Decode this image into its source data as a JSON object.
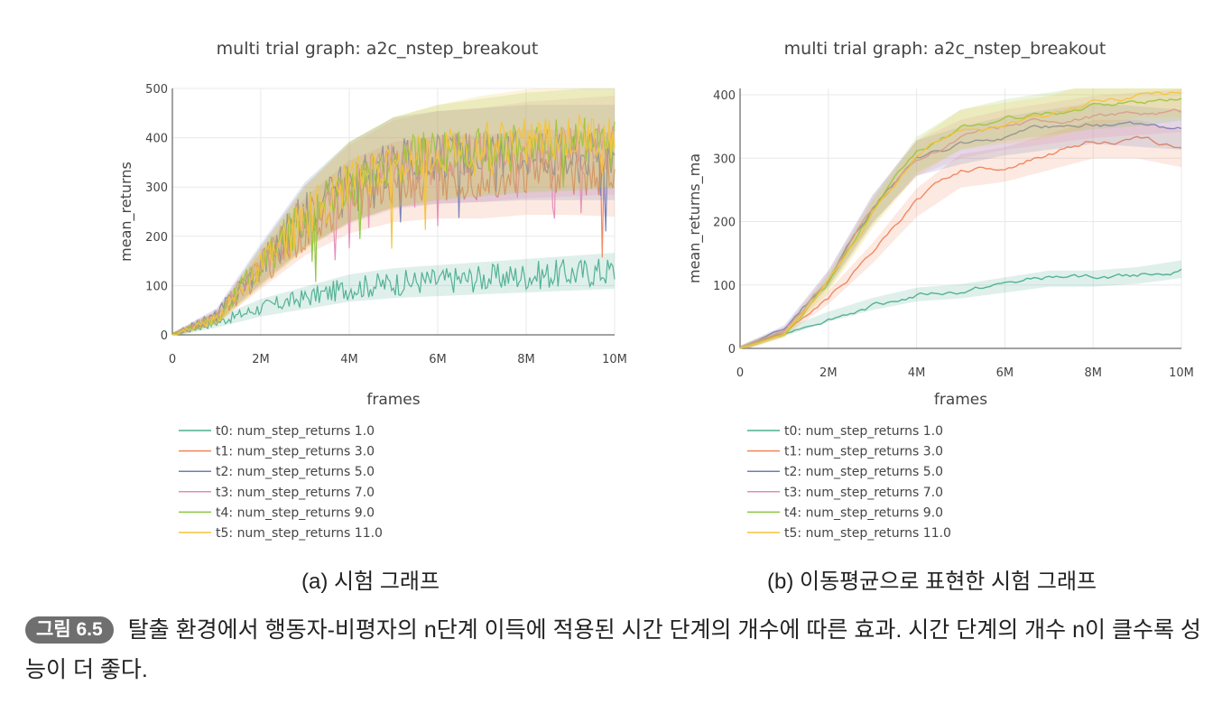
{
  "chart_data": [
    {
      "type": "line",
      "panel": "a",
      "title": "multi trial graph: a2c_nstep_breakout",
      "xlabel": "frames",
      "ylabel": "mean_returns",
      "xlim": [
        0,
        10
      ],
      "ylim": [
        0,
        500
      ],
      "x_ticks": [
        0,
        2,
        4,
        6,
        8,
        10
      ],
      "x_tick_labels": [
        "0",
        "2M",
        "4M",
        "6M",
        "8M",
        "10M"
      ],
      "y_ticks": [
        0,
        100,
        200,
        300,
        400,
        500
      ],
      "y_tick_labels": [
        "0",
        "100",
        "200",
        "300",
        "400",
        "500"
      ],
      "grid": true,
      "legend_position": "bottom-left",
      "noisy": true,
      "series": [
        {
          "name": "t0: num_step_returns 1.0",
          "color": "#4cae91",
          "x": [
            0,
            1,
            2,
            3,
            4,
            5,
            6,
            7,
            8,
            9,
            10
          ],
          "values": [
            0,
            25,
            55,
            75,
            95,
            105,
            110,
            115,
            120,
            125,
            130
          ]
        },
        {
          "name": "t1: num_step_returns 3.0",
          "color": "#f0845a",
          "x": [
            0,
            1,
            2,
            3,
            4,
            5,
            6,
            7,
            8,
            9,
            10
          ],
          "values": [
            0,
            35,
            130,
            220,
            280,
            310,
            320,
            320,
            330,
            330,
            325
          ]
        },
        {
          "name": "t2: num_step_returns 5.0",
          "color": "#6f7bb8",
          "x": [
            0,
            1,
            2,
            3,
            4,
            5,
            6,
            7,
            8,
            9,
            10
          ],
          "values": [
            0,
            40,
            145,
            245,
            310,
            350,
            360,
            365,
            370,
            370,
            370
          ]
        },
        {
          "name": "t3: num_step_returns 7.0",
          "color": "#e58bb8",
          "x": [
            0,
            1,
            2,
            3,
            4,
            5,
            6,
            7,
            8,
            9,
            10
          ],
          "values": [
            0,
            38,
            140,
            240,
            305,
            345,
            360,
            365,
            375,
            380,
            385
          ]
        },
        {
          "name": "t4: num_step_returns 9.0",
          "color": "#8cc63f",
          "x": [
            0,
            1,
            2,
            3,
            4,
            5,
            6,
            7,
            8,
            9,
            10
          ],
          "values": [
            0,
            35,
            140,
            240,
            310,
            350,
            370,
            380,
            390,
            395,
            400
          ]
        },
        {
          "name": "t5: num_step_returns 11.0",
          "color": "#f4c43a",
          "x": [
            0,
            1,
            2,
            3,
            4,
            5,
            6,
            7,
            8,
            9,
            10
          ],
          "values": [
            0,
            33,
            135,
            235,
            310,
            350,
            370,
            385,
            395,
            400,
            405
          ]
        }
      ]
    },
    {
      "type": "line",
      "panel": "b",
      "title": "multi trial graph: a2c_nstep_breakout",
      "xlabel": "frames",
      "ylabel": "mean_returns_ma",
      "xlim": [
        0,
        10
      ],
      "ylim": [
        0,
        410
      ],
      "x_ticks": [
        0,
        2,
        4,
        6,
        8,
        10
      ],
      "x_tick_labels": [
        "0",
        "2M",
        "4M",
        "6M",
        "8M",
        "10M"
      ],
      "y_ticks": [
        0,
        100,
        200,
        300,
        400
      ],
      "y_tick_labels": [
        "0",
        "100",
        "200",
        "300",
        "400"
      ],
      "grid": true,
      "legend_position": "bottom-left",
      "noisy": false,
      "series": [
        {
          "name": "t0: num_step_returns 1.0",
          "color": "#4cae91",
          "x": [
            0,
            1,
            2,
            3,
            4,
            5,
            6,
            7,
            8,
            9,
            10
          ],
          "values": [
            0,
            25,
            50,
            70,
            85,
            90,
            100,
            110,
            110,
            115,
            125
          ]
        },
        {
          "name": "t1: num_step_returns 3.0",
          "color": "#f0845a",
          "x": [
            0,
            1,
            2,
            3,
            4,
            5,
            6,
            7,
            8,
            9,
            10
          ],
          "values": [
            0,
            25,
            80,
            150,
            230,
            280,
            290,
            310,
            330,
            330,
            315
          ]
        },
        {
          "name": "t2: num_step_returns 5.0",
          "color": "#6f7bb8",
          "x": [
            0,
            1,
            2,
            3,
            4,
            5,
            6,
            7,
            8,
            9,
            10
          ],
          "values": [
            0,
            30,
            110,
            220,
            300,
            320,
            335,
            345,
            355,
            350,
            345
          ]
        },
        {
          "name": "t3: num_step_returns 7.0",
          "color": "#e58bb8",
          "x": [
            0,
            1,
            2,
            3,
            4,
            5,
            6,
            7,
            8,
            9,
            10
          ],
          "values": [
            0,
            28,
            110,
            220,
            300,
            330,
            345,
            355,
            365,
            370,
            375
          ]
        },
        {
          "name": "t4: num_step_returns 9.0",
          "color": "#8cc63f",
          "x": [
            0,
            1,
            2,
            3,
            4,
            5,
            6,
            7,
            8,
            9,
            10
          ],
          "values": [
            0,
            25,
            105,
            215,
            305,
            345,
            360,
            370,
            380,
            385,
            395
          ]
        },
        {
          "name": "t5: num_step_returns 11.0",
          "color": "#f4c43a",
          "x": [
            0,
            1,
            2,
            3,
            4,
            5,
            6,
            7,
            8,
            9,
            10
          ],
          "values": [
            0,
            22,
            100,
            210,
            300,
            345,
            355,
            365,
            385,
            400,
            400
          ]
        }
      ]
    }
  ],
  "subcaptions": {
    "a": "(a) 시험 그래프",
    "b": "(b) 이동평균으로 표현한 시험 그래프"
  },
  "caption": {
    "badge": "그림 6.5",
    "text": "탈출 환경에서 행동자-비평자의 n단계 이득에 적용된 시간 단계의 개수에 따른 효과. 시간 단계의 개수 n이 클수록 성능이 더 좋다."
  }
}
